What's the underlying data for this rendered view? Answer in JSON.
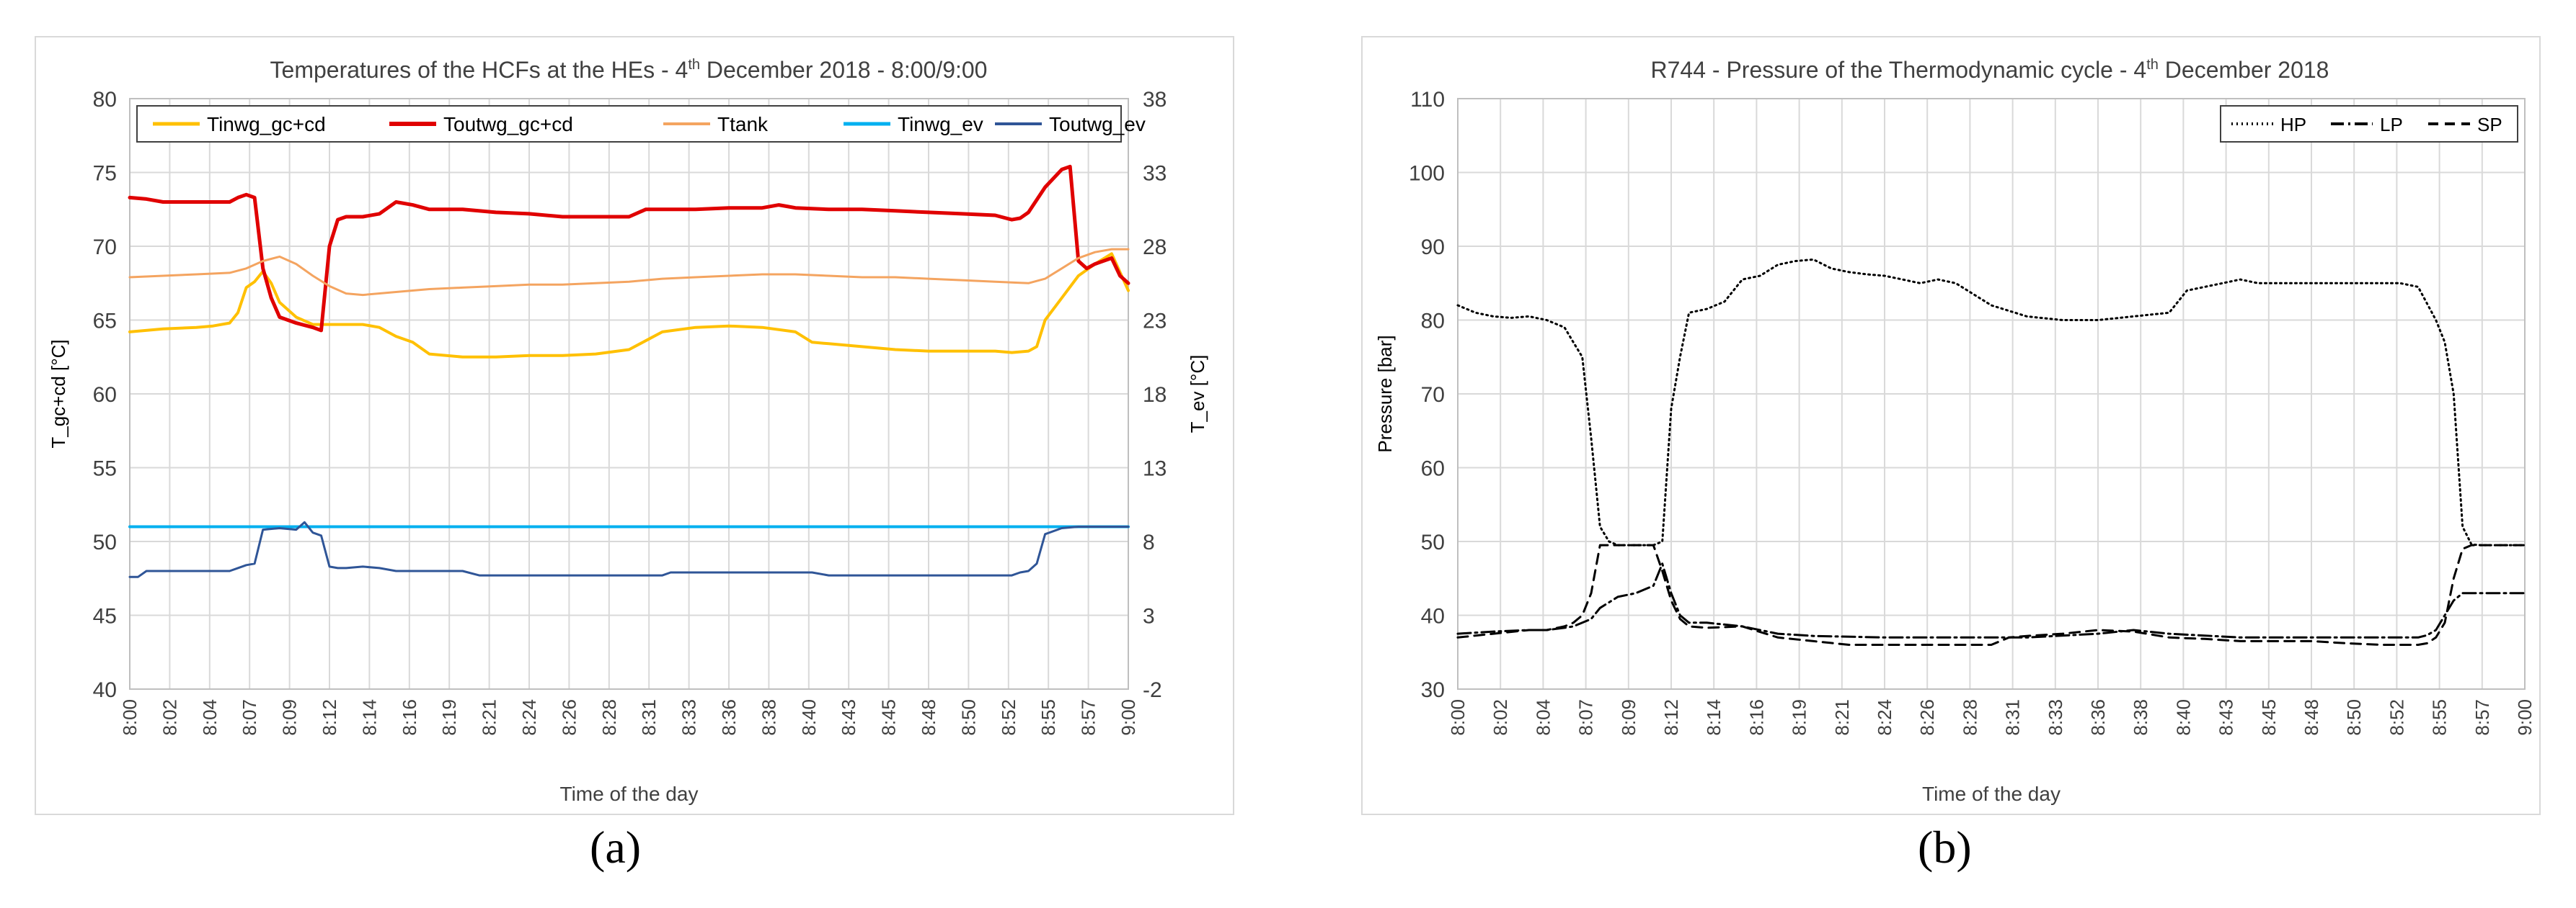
{
  "captions": {
    "a": "(a)",
    "b": "(b)"
  },
  "x_ticks": [
    "8:00",
    "8:02",
    "8:04",
    "8:07",
    "8:09",
    "8:12",
    "8:14",
    "8:16",
    "8:19",
    "8:21",
    "8:24",
    "8:26",
    "8:28",
    "8:31",
    "8:33",
    "8:36",
    "8:38",
    "8:40",
    "8:43",
    "8:45",
    "8:48",
    "8:50",
    "8:52",
    "8:55",
    "8:57",
    "9:00"
  ],
  "chart_data": [
    {
      "type": "line",
      "title": "Temperatures of the HCFs at the HEs - 4th December 2018 - 8:00/9:00",
      "title_main": "Temperatures of the HCFs at the HEs - 4",
      "title_sup": "th",
      "title_end": " December 2018 - 8:00/9:00",
      "xlabel": "Time of the day",
      "ylabel": "T_gc+cd [°C]",
      "y2label": "T_ev [°C]",
      "ylim": [
        40,
        80
      ],
      "yticks": [
        "80",
        "75",
        "70",
        "65",
        "60",
        "55",
        "50",
        "45",
        "40"
      ],
      "y2lim": [
        -2,
        38
      ],
      "y2ticks": [
        "38",
        "33",
        "28",
        "23",
        "18",
        "13",
        "8",
        "3",
        "-2"
      ],
      "xlim": [
        0,
        60
      ],
      "legend_position": "top",
      "series": [
        {
          "name": "Tinwg_gc+cd",
          "color": "#ffc000",
          "axis": "left",
          "width": 4,
          "x": [
            0,
            2,
            4,
            5,
            6,
            6.5,
            7,
            7.5,
            8,
            8.5,
            9,
            10,
            11,
            11.5,
            12,
            13,
            14,
            15,
            16,
            17,
            18,
            20,
            22,
            24,
            26,
            28,
            30,
            31,
            32,
            34,
            36,
            38,
            40,
            41,
            42,
            44,
            46,
            48,
            50,
            52,
            53,
            54,
            54.5,
            55,
            56,
            57,
            58,
            59,
            60
          ],
          "y": [
            64.2,
            64.4,
            64.5,
            64.6,
            64.8,
            65.5,
            67.2,
            67.6,
            68.3,
            67.5,
            66.2,
            65.2,
            64.7,
            64.7,
            64.7,
            64.7,
            64.7,
            64.5,
            63.9,
            63.5,
            62.7,
            62.5,
            62.5,
            62.6,
            62.6,
            62.7,
            63.0,
            63.6,
            64.2,
            64.5,
            64.6,
            64.5,
            64.2,
            63.5,
            63.4,
            63.2,
            63.0,
            62.9,
            62.9,
            62.9,
            62.8,
            62.9,
            63.2,
            65.0,
            66.5,
            68.0,
            68.8,
            69.5,
            67.0
          ]
        },
        {
          "name": "Toutwg_gc+cd",
          "color": "#e00000",
          "axis": "left",
          "width": 5,
          "x": [
            0,
            1,
            2,
            4,
            6,
            6.5,
            7,
            7.5,
            8,
            8.5,
            9,
            10,
            11,
            11.5,
            12,
            12.5,
            13,
            14,
            15,
            16,
            17,
            18,
            20,
            22,
            24,
            26,
            28,
            30,
            31,
            32,
            34,
            36,
            38,
            39,
            39.5,
            40,
            42,
            44,
            46,
            48,
            50,
            52,
            53,
            53.5,
            54,
            55,
            56,
            56.5,
            57,
            57.5,
            58,
            59,
            59.5,
            60
          ],
          "y": [
            73.3,
            73.2,
            73.0,
            73.0,
            73.0,
            73.3,
            73.5,
            73.3,
            68.5,
            66.5,
            65.2,
            64.8,
            64.5,
            64.3,
            70.0,
            71.8,
            72.0,
            72.0,
            72.2,
            73.0,
            72.8,
            72.5,
            72.5,
            72.3,
            72.2,
            72.0,
            72.0,
            72.0,
            72.5,
            72.5,
            72.5,
            72.6,
            72.6,
            72.8,
            72.7,
            72.6,
            72.5,
            72.5,
            72.4,
            72.3,
            72.2,
            72.1,
            71.8,
            71.9,
            72.3,
            74.0,
            75.2,
            75.4,
            69.0,
            68.5,
            68.8,
            69.2,
            68.0,
            67.5
          ]
        },
        {
          "name": "Ttank",
          "color": "#f4a460",
          "axis": "left",
          "width": 3,
          "x": [
            0,
            2,
            4,
            6,
            7,
            8,
            9,
            10,
            11,
            12,
            13,
            14,
            16,
            18,
            20,
            22,
            24,
            26,
            28,
            30,
            32,
            34,
            36,
            38,
            40,
            42,
            44,
            46,
            48,
            50,
            52,
            54,
            55,
            56,
            57,
            58,
            59,
            60
          ],
          "y": [
            67.9,
            68.0,
            68.1,
            68.2,
            68.5,
            69.0,
            69.3,
            68.8,
            68.0,
            67.3,
            66.8,
            66.7,
            66.9,
            67.1,
            67.2,
            67.3,
            67.4,
            67.4,
            67.5,
            67.6,
            67.8,
            67.9,
            68.0,
            68.1,
            68.1,
            68.0,
            67.9,
            67.9,
            67.8,
            67.7,
            67.6,
            67.5,
            67.8,
            68.5,
            69.2,
            69.6,
            69.8,
            69.8
          ]
        },
        {
          "name": "Tinwg_ev",
          "color": "#00b0f0",
          "axis": "right",
          "width": 4,
          "x": [
            0,
            60
          ],
          "y": [
            9.0,
            9.0
          ]
        },
        {
          "name": "Toutwg_ev",
          "color": "#2f5597",
          "axis": "right",
          "width": 3,
          "x": [
            0,
            0.5,
            1,
            6,
            6.5,
            7,
            7.5,
            8,
            9,
            10,
            10.5,
            11,
            11.5,
            12,
            12.5,
            13,
            14,
            15,
            16,
            20,
            21,
            32,
            32.5,
            36,
            38,
            40,
            41,
            42,
            50,
            52,
            53,
            53.5,
            54,
            54.5,
            55,
            56,
            57,
            58,
            60
          ],
          "y": [
            5.6,
            5.6,
            6.0,
            6.0,
            6.2,
            6.4,
            6.5,
            8.8,
            8.9,
            8.8,
            9.3,
            8.6,
            8.4,
            6.3,
            6.2,
            6.2,
            6.3,
            6.2,
            6.0,
            6.0,
            5.7,
            5.7,
            5.9,
            5.9,
            5.9,
            5.9,
            5.9,
            5.7,
            5.7,
            5.7,
            5.7,
            5.9,
            6.0,
            6.5,
            8.5,
            8.9,
            9.0,
            9.0,
            9.0
          ]
        }
      ]
    },
    {
      "type": "line",
      "title": "R744 - Pressure of the Thermodynamic cycle - 4th December 2018",
      "title_main": "R744 - Pressure of the Thermodynamic cycle - 4",
      "title_sup": "th",
      "title_end": " December 2018",
      "xlabel": "Time of the day",
      "ylabel": "Pressure [bar]",
      "ylim": [
        30,
        110
      ],
      "yticks": [
        "110",
        "100",
        "90",
        "80",
        "70",
        "60",
        "50",
        "40",
        "30"
      ],
      "xlim": [
        0,
        60
      ],
      "legend_position": "top-right",
      "series": [
        {
          "name": "HP",
          "color": "#000000",
          "dash": "2,5",
          "width": 3,
          "x": [
            0,
            1,
            2,
            3,
            4,
            5,
            6,
            6.5,
            7,
            7.5,
            8,
            8.5,
            9,
            10,
            11,
            11.5,
            12,
            12.5,
            13,
            14,
            15,
            16,
            17,
            18,
            19,
            20,
            21,
            22,
            23,
            24,
            25,
            26,
            27,
            28,
            30,
            32,
            34,
            36,
            38,
            40,
            41,
            42,
            43,
            44,
            45,
            46,
            47,
            48,
            49,
            50,
            51,
            52,
            53,
            54,
            55,
            55.5,
            56,
            56.5,
            57,
            57.5,
            58,
            60
          ],
          "y": [
            82,
            81,
            80.5,
            80.3,
            80.5,
            80,
            79,
            77,
            75,
            64,
            52,
            50,
            49.5,
            49.5,
            49.5,
            50,
            68,
            75,
            81,
            81.5,
            82.5,
            85.5,
            86,
            87.5,
            88,
            88.2,
            87,
            86.5,
            86.2,
            86,
            85.5,
            85,
            85.5,
            85,
            82,
            80.5,
            80,
            80,
            80.5,
            81,
            84,
            84.5,
            85,
            85.5,
            85,
            85,
            85,
            85,
            85,
            85,
            85,
            85,
            85,
            84.5,
            80,
            77,
            70,
            52,
            49.6,
            49.5,
            49.5,
            49.5
          ]
        },
        {
          "name": "LP",
          "color": "#000000",
          "dash": "18,6,3,6",
          "width": 3,
          "x": [
            0,
            2,
            4,
            5,
            6,
            6.5,
            7,
            7.5,
            8,
            9,
            10,
            10.5,
            11,
            11.5,
            12,
            12.5,
            13,
            14,
            16,
            18,
            20,
            24,
            28,
            32,
            36,
            38,
            40,
            44,
            48,
            52,
            54,
            54.5,
            55,
            55.5,
            56,
            56.5,
            57,
            58,
            60
          ],
          "y": [
            37.5,
            37.8,
            38,
            38,
            38.3,
            38.5,
            39,
            39.5,
            41,
            42.5,
            43,
            43.5,
            44,
            47,
            43,
            40,
            39,
            39,
            38.5,
            37.5,
            37.2,
            37,
            37,
            37,
            37.5,
            38,
            37.5,
            37,
            37,
            37,
            37,
            37.3,
            38,
            40,
            42,
            43,
            43,
            43,
            43
          ]
        },
        {
          "name": "SP",
          "color": "#000000",
          "dash": "14,9",
          "width": 3,
          "x": [
            0,
            2,
            4,
            5,
            6,
            6.5,
            7,
            7.5,
            8,
            9,
            10,
            10.5,
            11,
            11.5,
            12,
            12.5,
            13,
            14,
            16,
            18,
            20,
            22,
            26,
            28,
            30,
            31,
            32,
            34,
            36,
            38,
            40,
            42,
            44,
            48,
            50,
            52,
            54,
            54.5,
            55,
            55.5,
            56,
            56.5,
            57,
            58,
            60
          ],
          "y": [
            37,
            37.5,
            38,
            38,
            38.5,
            39,
            40,
            43,
            49.5,
            49.5,
            49.5,
            49.5,
            49.5,
            46,
            42,
            39.5,
            38.5,
            38.3,
            38.5,
            37,
            36.5,
            36,
            36,
            36,
            36,
            37,
            37.2,
            37.5,
            38,
            37.8,
            37,
            36.8,
            36.5,
            36.5,
            36.2,
            36,
            36,
            36.2,
            37,
            39,
            45,
            49,
            49.5,
            49.5,
            49.5
          ]
        }
      ]
    }
  ]
}
